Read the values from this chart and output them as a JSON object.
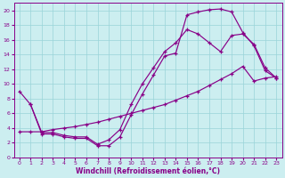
{
  "xlabel": "Windchill (Refroidissement éolien,°C)",
  "bg_color": "#cceef0",
  "grid_color": "#99d4d8",
  "line_color": "#880088",
  "xlim": [
    -0.5,
    23.5
  ],
  "ylim": [
    0,
    21
  ],
  "xticks": [
    0,
    1,
    2,
    3,
    4,
    5,
    6,
    7,
    8,
    9,
    10,
    11,
    12,
    13,
    14,
    15,
    16,
    17,
    18,
    19,
    20,
    21,
    22,
    23
  ],
  "yticks": [
    0,
    2,
    4,
    6,
    8,
    10,
    12,
    14,
    16,
    18,
    20
  ],
  "curve1_x": [
    0,
    1,
    2,
    3,
    4,
    5,
    6,
    7,
    8,
    9,
    10,
    11,
    12,
    13,
    14,
    15,
    16,
    17,
    18,
    19,
    20,
    21,
    22,
    23
  ],
  "curve1_y": [
    9.0,
    7.2,
    3.2,
    3.2,
    2.8,
    2.6,
    2.6,
    1.6,
    1.6,
    2.8,
    5.8,
    8.6,
    11.2,
    13.8,
    14.2,
    19.4,
    19.8,
    20.1,
    20.2,
    19.8,
    17.0,
    15.2,
    11.8,
    10.8
  ],
  "curve2_x": [
    0,
    1,
    2,
    3,
    4,
    5,
    6,
    7,
    8,
    9,
    10,
    11,
    12,
    13,
    14,
    15,
    16,
    17,
    18,
    19,
    20,
    21,
    22,
    23
  ],
  "curve2_y": [
    3.5,
    3.5,
    3.5,
    3.8,
    4.0,
    4.2,
    4.5,
    4.8,
    5.2,
    5.6,
    6.0,
    6.4,
    6.8,
    7.2,
    7.8,
    8.4,
    9.0,
    9.8,
    10.6,
    11.4,
    12.4,
    10.4,
    10.8,
    11.0
  ],
  "curve3_x": [
    1,
    2,
    3,
    4,
    5,
    6,
    7,
    8,
    9,
    10,
    11,
    12,
    13,
    14,
    15,
    16,
    17,
    18,
    19,
    20,
    21,
    22,
    23
  ],
  "curve3_y": [
    7.2,
    3.4,
    3.4,
    3.0,
    2.8,
    2.8,
    1.8,
    2.4,
    3.8,
    7.2,
    10.0,
    12.2,
    14.4,
    15.6,
    17.4,
    16.8,
    15.6,
    14.4,
    16.6,
    16.8,
    15.4,
    12.2,
    10.8
  ]
}
